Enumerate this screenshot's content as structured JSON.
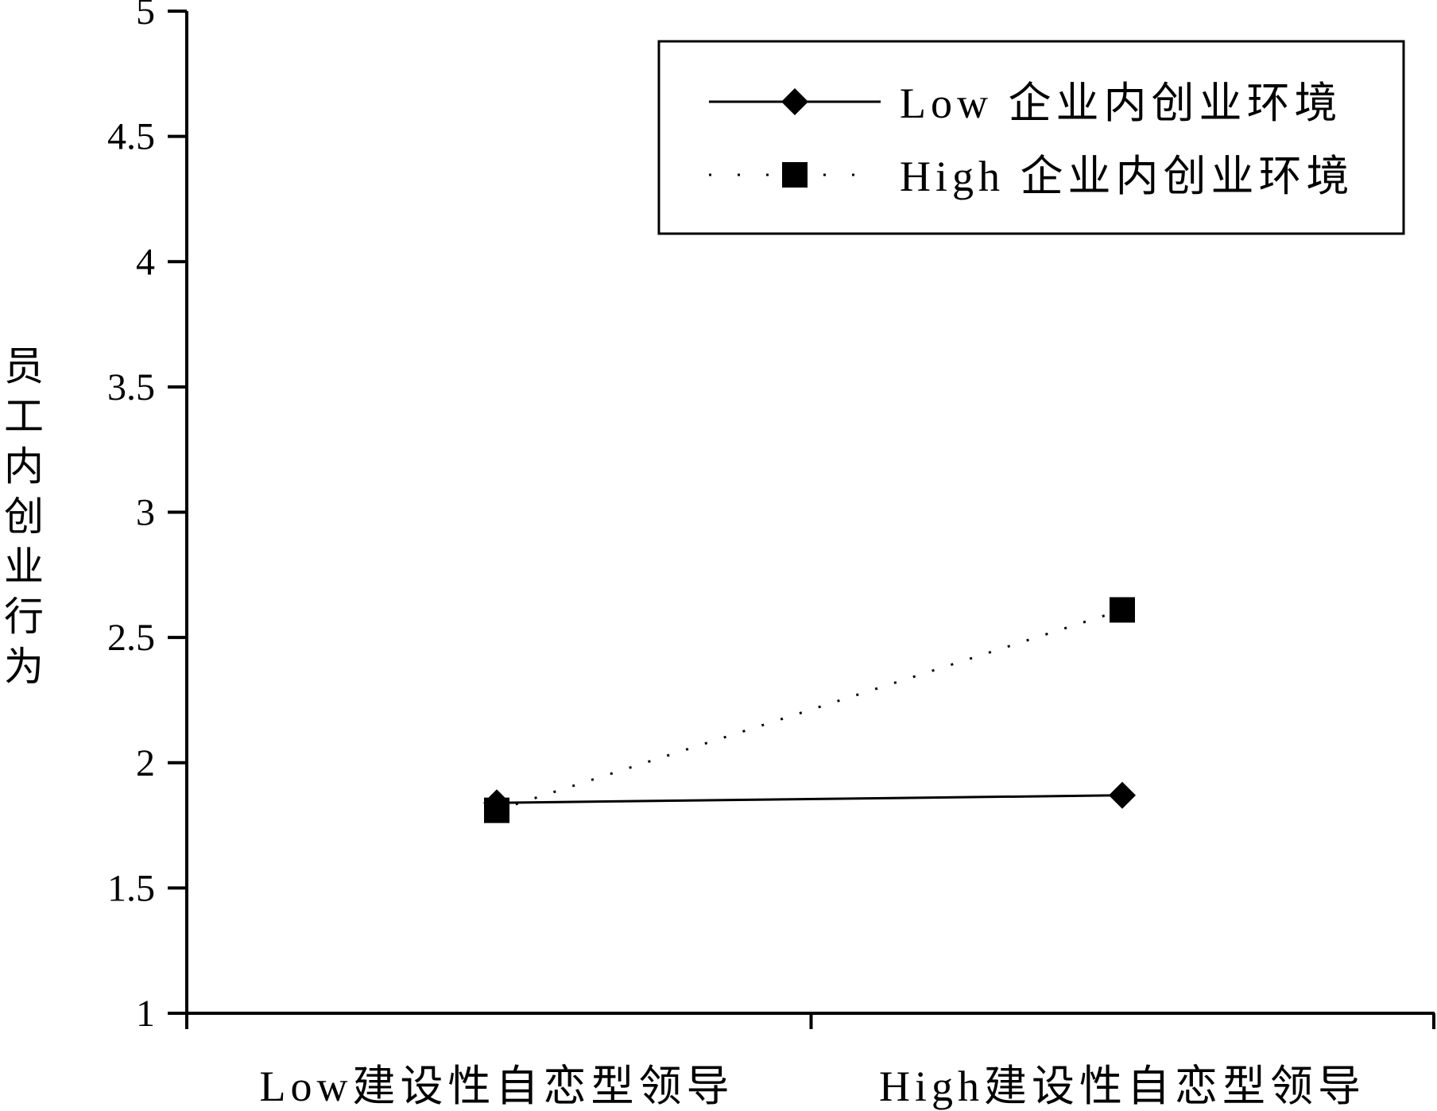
{
  "chart_data": {
    "type": "line",
    "title": "",
    "xlabel": "",
    "ylabel": "员工内创业行为",
    "ylim": [
      1,
      5
    ],
    "yticks": [
      "1",
      "1.5",
      "2",
      "2.5",
      "3",
      "3.5",
      "4",
      "4.5",
      "5"
    ],
    "categories": [
      "Low建设性自恋型领导",
      "High建设性自恋型领导"
    ],
    "series": [
      {
        "name": "Low 企业内创业环境",
        "values": [
          1.84,
          1.87
        ],
        "line_style": "solid",
        "marker": "diamond",
        "color": "#000000"
      },
      {
        "name": "High 企业内创业环境",
        "values": [
          1.81,
          2.61
        ],
        "line_style": "dotted",
        "marker": "square",
        "color": "#000000"
      }
    ],
    "legend_position": "top-right",
    "grid": false
  }
}
